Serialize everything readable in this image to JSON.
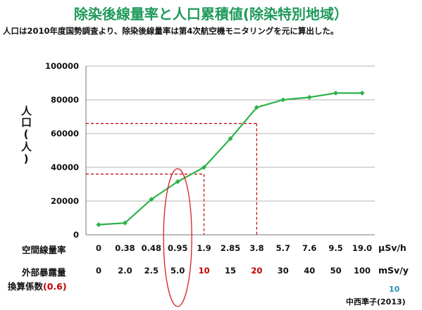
{
  "title": "除染後線量率と人口累積値(除染特別地域）",
  "subtitle": "人口は2010年度国勢調査より、除染後線量率は第4次航空機モニタリングを元に算出した。",
  "ylabel": "人口(人)",
  "row1_label": "空間線量率",
  "row1_unit": "μSv/h",
  "row2_label": "外部暴露量",
  "row2_unit": "mSv/y",
  "row3_label": "換算係数",
  "row3_factor": "(0.6)",
  "page_number": "10",
  "author": "中西準子(2013)",
  "colors": {
    "title": "#1e9a5a",
    "series": "#2db24a",
    "guide": "#c00000",
    "ellipse": "#d62020"
  },
  "chart_data": {
    "type": "line",
    "ylim": [
      0,
      100000
    ],
    "yticks": [
      "0",
      "20000",
      "40000",
      "60000",
      "80000",
      "100000"
    ],
    "x_categories_dose_rate": [
      "0",
      "0.38",
      "0.48",
      "0.95",
      "1.9",
      "2.85",
      "3.8",
      "5.7",
      "7.6",
      "9.5",
      "19.0"
    ],
    "x_categories_exposure": [
      "0",
      "2.0",
      "2.5",
      "5.0",
      "10",
      "15",
      "20",
      "30",
      "40",
      "50",
      "100"
    ],
    "highlighted_exposure": [
      "10",
      "20"
    ],
    "series": [
      {
        "values": [
          6000,
          7000,
          21000,
          31500,
          40000,
          57000,
          75500,
          80000,
          81500,
          84000,
          84000
        ]
      }
    ],
    "guides": [
      {
        "x_exposure": "10",
        "y": 36000
      },
      {
        "x_exposure": "20",
        "y": 66000
      }
    ],
    "highlight_ellipse_category": "5.0",
    "grid": true
  }
}
